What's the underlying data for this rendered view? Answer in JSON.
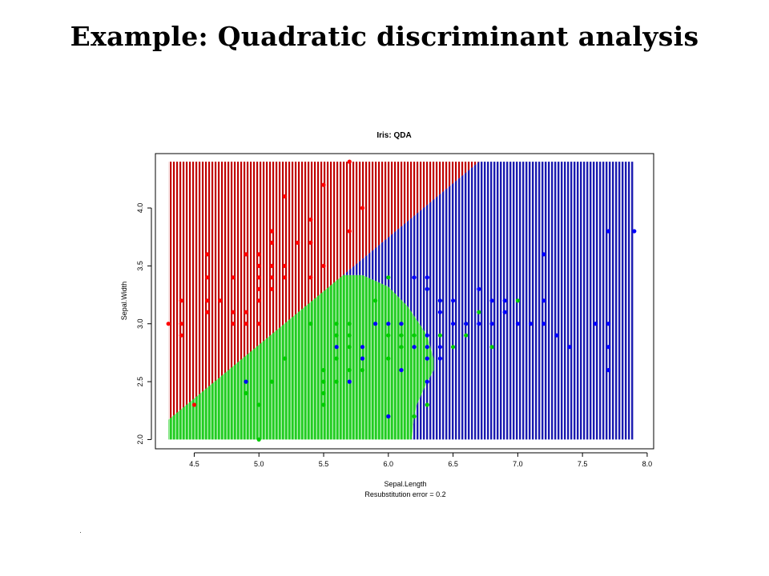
{
  "slide": {
    "title": "Example:  Quadratic discriminant analysis"
  },
  "chart_data": {
    "type": "scatter",
    "title": "Iris: QDA",
    "xlabel": "Sepal.Length",
    "subtitle": "Resubstitution error = 0.2",
    "ylabel": "Sepal.Width",
    "xlim": [
      4.2,
      8.05
    ],
    "ylim": [
      1.92,
      4.47
    ],
    "xticks": [
      4.5,
      5.0,
      5.5,
      6.0,
      6.5,
      7.0,
      7.5,
      8.0
    ],
    "xtick_labels": [
      "4.5",
      "5.0",
      "5.5",
      "6.0",
      "6.5",
      "7.0",
      "7.5",
      "8.0"
    ],
    "yticks": [
      2.0,
      2.5,
      3.0,
      3.5,
      4.0
    ],
    "ytick_labels": [
      "2.0",
      "2.5",
      "3.0",
      "3.5",
      "4.0"
    ],
    "grid": false,
    "region_colors": {
      "red": "#c00000",
      "green": "#22cc22",
      "blue": "#1a1ab0"
    },
    "point_colors": {
      "red": "#ff0000",
      "green": "#00cc00",
      "blue": "#0000ff"
    },
    "decision_regions": [
      {
        "class": "red",
        "polygon": [
          [
            4.3,
            2.17
          ],
          [
            4.3,
            4.4
          ],
          [
            6.7,
            4.4
          ],
          [
            5.65,
            3.42
          ]
        ]
      },
      {
        "class": "green",
        "polygon": [
          [
            4.3,
            2.17
          ],
          [
            5.65,
            3.42
          ],
          [
            5.8,
            3.42
          ],
          [
            6.0,
            3.32
          ],
          [
            6.15,
            3.15
          ],
          [
            6.3,
            2.9
          ],
          [
            6.35,
            2.7
          ],
          [
            6.35,
            2.6
          ],
          [
            6.28,
            2.45
          ],
          [
            6.22,
            2.3
          ],
          [
            6.2,
            2.2
          ],
          [
            6.18,
            2.0
          ],
          [
            4.3,
            2.0
          ]
        ]
      },
      {
        "class": "blue",
        "polygon": [
          [
            6.7,
            4.4
          ],
          [
            7.9,
            4.4
          ],
          [
            7.9,
            2.0
          ],
          [
            6.18,
            2.0
          ],
          [
            6.2,
            2.2
          ],
          [
            6.22,
            2.3
          ],
          [
            6.28,
            2.45
          ],
          [
            6.35,
            2.6
          ],
          [
            6.35,
            2.7
          ],
          [
            6.3,
            2.9
          ],
          [
            6.15,
            3.15
          ],
          [
            6.0,
            3.32
          ],
          [
            5.8,
            3.42
          ],
          [
            5.65,
            3.42
          ]
        ]
      }
    ],
    "series": [
      {
        "class": "red",
        "points": [
          [
            4.3,
            3.0
          ],
          [
            4.4,
            3.2
          ],
          [
            4.4,
            3.0
          ],
          [
            4.4,
            2.9
          ],
          [
            4.5,
            2.3
          ],
          [
            4.6,
            3.6
          ],
          [
            4.6,
            3.4
          ],
          [
            4.6,
            3.2
          ],
          [
            4.6,
            3.1
          ],
          [
            4.7,
            3.2
          ],
          [
            4.8,
            3.4
          ],
          [
            4.8,
            3.1
          ],
          [
            4.8,
            3.0
          ],
          [
            4.9,
            3.6
          ],
          [
            4.9,
            3.1
          ],
          [
            4.9,
            3.0
          ],
          [
            5.0,
            3.6
          ],
          [
            5.0,
            3.5
          ],
          [
            5.0,
            3.4
          ],
          [
            5.0,
            3.3
          ],
          [
            5.0,
            3.2
          ],
          [
            5.0,
            3.0
          ],
          [
            5.1,
            3.8
          ],
          [
            5.1,
            3.7
          ],
          [
            5.1,
            3.5
          ],
          [
            5.1,
            3.4
          ],
          [
            5.1,
            3.3
          ],
          [
            5.2,
            4.1
          ],
          [
            5.2,
            3.5
          ],
          [
            5.2,
            3.4
          ],
          [
            5.3,
            3.7
          ],
          [
            5.4,
            3.9
          ],
          [
            5.4,
            3.7
          ],
          [
            5.4,
            3.4
          ],
          [
            5.5,
            4.2
          ],
          [
            5.5,
            3.5
          ],
          [
            5.7,
            4.4
          ],
          [
            5.7,
            3.8
          ],
          [
            5.8,
            4.0
          ]
        ]
      },
      {
        "class": "green",
        "points": [
          [
            4.9,
            2.4
          ],
          [
            5.0,
            2.0
          ],
          [
            5.0,
            2.3
          ],
          [
            5.1,
            2.5
          ],
          [
            5.2,
            2.7
          ],
          [
            5.4,
            3.0
          ],
          [
            5.5,
            2.3
          ],
          [
            5.5,
            2.4
          ],
          [
            5.5,
            2.5
          ],
          [
            5.5,
            2.6
          ],
          [
            5.6,
            2.5
          ],
          [
            5.6,
            2.7
          ],
          [
            5.6,
            2.9
          ],
          [
            5.6,
            3.0
          ],
          [
            5.7,
            2.6
          ],
          [
            5.7,
            2.8
          ],
          [
            5.7,
            2.9
          ],
          [
            5.7,
            3.0
          ],
          [
            5.8,
            2.6
          ],
          [
            5.8,
            2.7
          ],
          [
            5.9,
            3.0
          ],
          [
            5.9,
            3.2
          ],
          [
            6.0,
            2.2
          ],
          [
            6.0,
            2.7
          ],
          [
            6.0,
            2.9
          ],
          [
            6.0,
            3.4
          ],
          [
            6.1,
            2.8
          ],
          [
            6.1,
            2.9
          ],
          [
            6.1,
            3.0
          ],
          [
            6.2,
            2.2
          ],
          [
            6.2,
            2.9
          ],
          [
            6.3,
            2.3
          ],
          [
            6.3,
            3.3
          ],
          [
            6.4,
            2.9
          ],
          [
            6.4,
            3.2
          ],
          [
            6.5,
            2.8
          ],
          [
            6.6,
            2.9
          ],
          [
            6.6,
            3.0
          ],
          [
            6.7,
            3.1
          ],
          [
            6.8,
            2.8
          ],
          [
            7.0,
            3.2
          ]
        ]
      },
      {
        "class": "blue",
        "points": [
          [
            4.9,
            2.5
          ],
          [
            5.6,
            2.8
          ],
          [
            5.7,
            2.5
          ],
          [
            5.8,
            2.8
          ],
          [
            5.8,
            2.7
          ],
          [
            5.9,
            3.0
          ],
          [
            6.0,
            3.0
          ],
          [
            6.0,
            2.2
          ],
          [
            6.1,
            3.0
          ],
          [
            6.1,
            2.6
          ],
          [
            6.2,
            3.4
          ],
          [
            6.2,
            2.8
          ],
          [
            6.3,
            3.4
          ],
          [
            6.3,
            3.3
          ],
          [
            6.3,
            2.9
          ],
          [
            6.3,
            2.8
          ],
          [
            6.3,
            2.7
          ],
          [
            6.3,
            2.5
          ],
          [
            6.4,
            3.2
          ],
          [
            6.4,
            3.1
          ],
          [
            6.4,
            2.8
          ],
          [
            6.4,
            2.7
          ],
          [
            6.5,
            3.2
          ],
          [
            6.5,
            3.0
          ],
          [
            6.6,
            3.0
          ],
          [
            6.7,
            3.3
          ],
          [
            6.7,
            3.0
          ],
          [
            6.8,
            3.2
          ],
          [
            6.8,
            3.0
          ],
          [
            6.9,
            3.2
          ],
          [
            6.9,
            3.1
          ],
          [
            7.0,
            3.0
          ],
          [
            7.1,
            3.0
          ],
          [
            7.2,
            3.6
          ],
          [
            7.2,
            3.2
          ],
          [
            7.2,
            3.0
          ],
          [
            7.3,
            2.9
          ],
          [
            7.4,
            2.8
          ],
          [
            7.6,
            3.0
          ],
          [
            7.7,
            3.8
          ],
          [
            7.7,
            3.0
          ],
          [
            7.7,
            2.8
          ],
          [
            7.7,
            2.6
          ],
          [
            7.9,
            3.8
          ]
        ]
      }
    ]
  }
}
